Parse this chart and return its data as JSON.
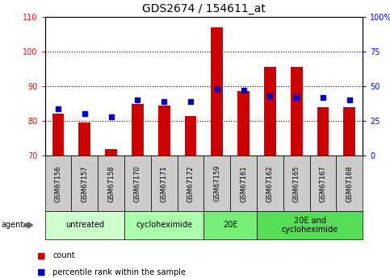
{
  "title": "GDS2674 / 154611_at",
  "samples": [
    "GSM67156",
    "GSM67157",
    "GSM67158",
    "GSM67170",
    "GSM67171",
    "GSM67172",
    "GSM67159",
    "GSM67161",
    "GSM67162",
    "GSM67165",
    "GSM67167",
    "GSM67168"
  ],
  "count_values": [
    82,
    79.5,
    72,
    85,
    84.5,
    81.5,
    107,
    88.5,
    95.5,
    95.5,
    84,
    84
  ],
  "percentile_values": [
    34,
    30,
    28,
    40,
    39,
    39,
    48,
    47,
    43,
    42,
    42,
    40
  ],
  "groups": [
    {
      "label": "untreated",
      "start": 0,
      "end": 3,
      "color": "#ccffcc"
    },
    {
      "label": "cycloheximide",
      "start": 3,
      "end": 6,
      "color": "#aaffaa"
    },
    {
      "label": "20E",
      "start": 6,
      "end": 8,
      "color": "#77ee77"
    },
    {
      "label": "20E and\ncycloheximide",
      "start": 8,
      "end": 12,
      "color": "#55dd55"
    }
  ],
  "ylim_left": [
    70,
    110
  ],
  "ylim_right": [
    0,
    100
  ],
  "bar_color": "#cc0000",
  "dot_color": "#0000cc",
  "background_color": "#ffffff",
  "plot_bg": "#ffffff",
  "tick_label_bg": "#cccccc",
  "title_fontsize": 10,
  "agent_label": "agent"
}
